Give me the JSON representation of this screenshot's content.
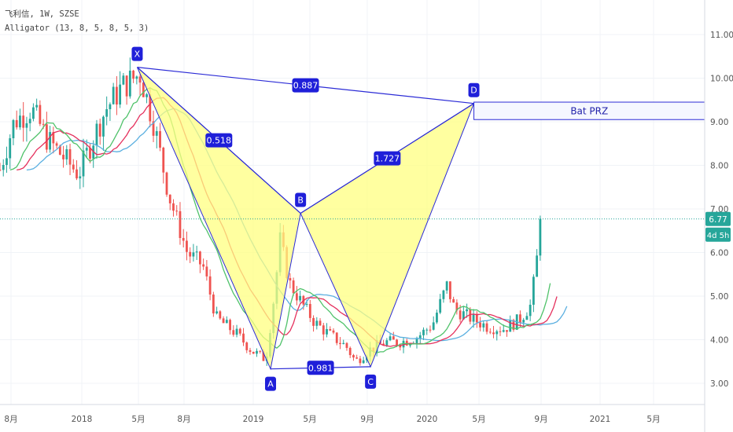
{
  "header": {
    "symbol_line": "飞利信, 1W, SZSE",
    "indicator_line": "Alligator (13, 8, 5, 8, 5, 3)"
  },
  "price_axis": {
    "labels": [
      "11.00",
      "10.00",
      "9.00",
      "8.00",
      "7.00",
      "6.00",
      "5.00",
      "4.00",
      "3.00"
    ],
    "last_price": "6.77",
    "countdown": "4d 5h",
    "last_price_color": "#26a69a"
  },
  "time_axis": {
    "labels": [
      "8月",
      "2018",
      "5月",
      "8月",
      "2019",
      "5月",
      "9月",
      "2020",
      "5月",
      "9月",
      "2021",
      "5月"
    ]
  },
  "pattern": {
    "points": [
      "X",
      "A",
      "B",
      "C",
      "D"
    ],
    "ratios": [
      "0.887",
      "0.518",
      "1.727",
      "0.981"
    ],
    "prz_label": "Bat  PRZ",
    "fill_color": "#ffff80",
    "line_color": "#2b2bd6"
  },
  "chart_data": {
    "type": "line",
    "title": "飞利信, 1W, SZSE",
    "ylim": [
      2.5,
      11.8
    ],
    "y_ticks": [
      3,
      4,
      5,
      6,
      7,
      8,
      9,
      10,
      11
    ],
    "harmonic_points": [
      {
        "label": "X",
        "date": "2018-04-23",
        "price": 10.25
      },
      {
        "label": "A",
        "date": "2019-01-28",
        "price": 3.33
      },
      {
        "label": "B",
        "date": "2019-04-01",
        "price": 6.9
      },
      {
        "label": "C",
        "date": "2019-08-26",
        "price": 3.38
      },
      {
        "label": "D",
        "date": "2020-03-30",
        "price": 9.42
      }
    ],
    "prz_range": [
      9.05,
      9.45
    ],
    "last_price": 6.77,
    "series": [
      {
        "name": "Jaw",
        "color": "#5aafe0"
      },
      {
        "name": "Teeth",
        "color": "#e5305d"
      },
      {
        "name": "Lips",
        "color": "#4fc26a"
      }
    ]
  }
}
